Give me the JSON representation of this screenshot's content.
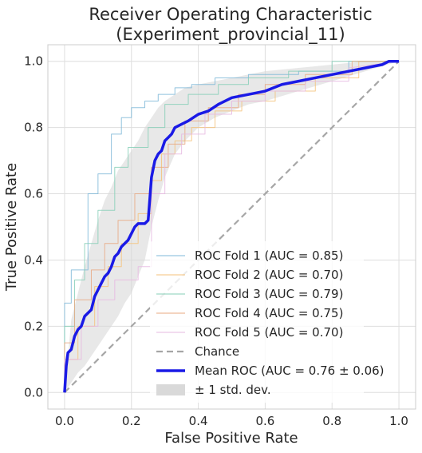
{
  "chart_data": {
    "type": "line",
    "title": "Receiver Operating Characteristic",
    "subtitle": "(Experiment_provincial_11)",
    "xlabel": "False Positive Rate",
    "ylabel": "True Positive Rate",
    "xlim": [
      -0.05,
      1.05
    ],
    "ylim": [
      -0.05,
      1.05
    ],
    "xticks": [
      "0.0",
      "0.2",
      "0.4",
      "0.6",
      "0.8",
      "1.0"
    ],
    "yticks": [
      "0.0",
      "0.2",
      "0.4",
      "0.6",
      "0.8",
      "1.0"
    ],
    "grid": true,
    "legend_position": "lower-right",
    "series": [
      {
        "name": "ROC Fold 1 (AUC = 0.85)",
        "color": "#7fb8d8",
        "width": 1,
        "dash": false,
        "x": [
          0,
          0,
          0.02,
          0.02,
          0.07,
          0.07,
          0.1,
          0.1,
          0.14,
          0.14,
          0.17,
          0.17,
          0.2,
          0.2,
          0.24,
          0.24,
          0.28,
          0.28,
          0.33,
          0.33,
          0.38,
          0.38,
          0.45,
          0.45,
          0.55,
          0.55,
          0.7,
          0.7,
          0.85,
          0.85,
          1
        ],
        "y": [
          0,
          0.27,
          0.27,
          0.37,
          0.37,
          0.6,
          0.6,
          0.66,
          0.66,
          0.78,
          0.78,
          0.83,
          0.83,
          0.86,
          0.86,
          0.88,
          0.88,
          0.9,
          0.9,
          0.92,
          0.92,
          0.93,
          0.93,
          0.95,
          0.95,
          0.96,
          0.96,
          0.97,
          0.97,
          1,
          1
        ]
      },
      {
        "name": "ROC Fold 2 (AUC = 0.70)",
        "color": "#f5c27a",
        "width": 1,
        "dash": false,
        "x": [
          0,
          0,
          0.04,
          0.04,
          0.09,
          0.09,
          0.13,
          0.13,
          0.17,
          0.17,
          0.22,
          0.22,
          0.26,
          0.26,
          0.29,
          0.29,
          0.33,
          0.33,
          0.38,
          0.38,
          0.45,
          0.45,
          0.53,
          0.53,
          0.63,
          0.63,
          0.75,
          0.75,
          0.88,
          0.88,
          1
        ],
        "y": [
          0,
          0.1,
          0.1,
          0.2,
          0.2,
          0.32,
          0.32,
          0.38,
          0.38,
          0.45,
          0.45,
          0.54,
          0.54,
          0.64,
          0.64,
          0.72,
          0.72,
          0.76,
          0.76,
          0.8,
          0.8,
          0.85,
          0.85,
          0.88,
          0.88,
          0.91,
          0.91,
          0.95,
          0.95,
          1,
          1
        ]
      },
      {
        "name": "ROC Fold 3 (AUC = 0.79)",
        "color": "#86cfb7",
        "width": 1,
        "dash": false,
        "x": [
          0,
          0,
          0.03,
          0.03,
          0.06,
          0.06,
          0.1,
          0.1,
          0.15,
          0.15,
          0.19,
          0.19,
          0.25,
          0.25,
          0.3,
          0.3,
          0.37,
          0.37,
          0.46,
          0.46,
          0.55,
          0.55,
          0.67,
          0.67,
          0.8,
          0.8,
          1
        ],
        "y": [
          0,
          0.2,
          0.2,
          0.34,
          0.34,
          0.45,
          0.45,
          0.55,
          0.55,
          0.68,
          0.68,
          0.74,
          0.74,
          0.8,
          0.8,
          0.87,
          0.87,
          0.9,
          0.9,
          0.93,
          0.93,
          0.95,
          0.95,
          0.97,
          0.97,
          1,
          1
        ]
      },
      {
        "name": "ROC Fold 4 (AUC = 0.75)",
        "color": "#e8a982",
        "width": 1,
        "dash": false,
        "x": [
          0,
          0,
          0.03,
          0.03,
          0.08,
          0.08,
          0.12,
          0.12,
          0.16,
          0.16,
          0.21,
          0.21,
          0.26,
          0.26,
          0.31,
          0.31,
          0.36,
          0.36,
          0.43,
          0.43,
          0.52,
          0.52,
          0.6,
          0.6,
          0.72,
          0.72,
          0.86,
          0.86,
          1
        ],
        "y": [
          0,
          0.15,
          0.15,
          0.28,
          0.28,
          0.37,
          0.37,
          0.45,
          0.45,
          0.52,
          0.52,
          0.6,
          0.6,
          0.68,
          0.68,
          0.75,
          0.75,
          0.82,
          0.82,
          0.86,
          0.86,
          0.9,
          0.9,
          0.93,
          0.93,
          0.96,
          0.96,
          1,
          1
        ]
      },
      {
        "name": "ROC Fold 5 (AUC = 0.70)",
        "color": "#e6b8e0",
        "width": 1,
        "dash": false,
        "x": [
          0,
          0,
          0.05,
          0.05,
          0.1,
          0.1,
          0.15,
          0.15,
          0.22,
          0.22,
          0.26,
          0.26,
          0.3,
          0.3,
          0.35,
          0.35,
          0.42,
          0.42,
          0.5,
          0.5,
          0.6,
          0.6,
          0.72,
          0.72,
          0.85,
          0.85,
          1
        ],
        "y": [
          0,
          0.1,
          0.1,
          0.2,
          0.2,
          0.28,
          0.28,
          0.34,
          0.34,
          0.38,
          0.38,
          0.6,
          0.6,
          0.72,
          0.72,
          0.78,
          0.78,
          0.84,
          0.84,
          0.88,
          0.88,
          0.91,
          0.91,
          0.94,
          0.94,
          0.98,
          1
        ]
      },
      {
        "name": "Chance",
        "color": "#a6a6a6",
        "width": 2.2,
        "dash": true,
        "x": [
          0,
          1
        ],
        "y": [
          0,
          1
        ]
      },
      {
        "name": "Mean ROC (AUC = 0.76 ± 0.06)",
        "color": "#1a1ae6",
        "width": 3.5,
        "dash": false,
        "x": [
          0,
          0.005,
          0.01,
          0.02,
          0.03,
          0.035,
          0.04,
          0.05,
          0.06,
          0.07,
          0.08,
          0.09,
          0.1,
          0.11,
          0.12,
          0.13,
          0.14,
          0.15,
          0.16,
          0.17,
          0.18,
          0.19,
          0.2,
          0.21,
          0.22,
          0.23,
          0.24,
          0.25,
          0.26,
          0.27,
          0.28,
          0.29,
          0.3,
          0.31,
          0.32,
          0.33,
          0.35,
          0.37,
          0.4,
          0.43,
          0.46,
          0.5,
          0.55,
          0.6,
          0.65,
          0.7,
          0.75,
          0.8,
          0.85,
          0.9,
          0.95,
          0.97,
          1
        ],
        "y": [
          0,
          0.08,
          0.12,
          0.13,
          0.17,
          0.18,
          0.19,
          0.2,
          0.23,
          0.24,
          0.25,
          0.29,
          0.31,
          0.33,
          0.35,
          0.36,
          0.38,
          0.41,
          0.42,
          0.44,
          0.45,
          0.46,
          0.48,
          0.5,
          0.51,
          0.51,
          0.51,
          0.52,
          0.65,
          0.7,
          0.72,
          0.73,
          0.76,
          0.77,
          0.78,
          0.8,
          0.81,
          0.82,
          0.84,
          0.85,
          0.87,
          0.89,
          0.9,
          0.91,
          0.93,
          0.94,
          0.95,
          0.96,
          0.97,
          0.98,
          0.99,
          1,
          1
        ]
      }
    ],
    "std_band": {
      "name": "± 1 std. dev.",
      "color": "#d9d9d9",
      "x": [
        0,
        0.02,
        0.04,
        0.06,
        0.08,
        0.1,
        0.12,
        0.14,
        0.16,
        0.18,
        0.2,
        0.22,
        0.24,
        0.26,
        0.28,
        0.3,
        0.33,
        0.36,
        0.4,
        0.45,
        0.5,
        0.55,
        0.6,
        0.7,
        0.8,
        0.9,
        1
      ],
      "lower": [
        0,
        0.03,
        0.06,
        0.08,
        0.11,
        0.14,
        0.17,
        0.2,
        0.23,
        0.27,
        0.3,
        0.35,
        0.4,
        0.5,
        0.58,
        0.65,
        0.72,
        0.76,
        0.8,
        0.83,
        0.85,
        0.87,
        0.88,
        0.91,
        0.94,
        0.97,
        1
      ],
      "upper": [
        0,
        0.22,
        0.3,
        0.38,
        0.45,
        0.52,
        0.58,
        0.62,
        0.67,
        0.7,
        0.73,
        0.76,
        0.8,
        0.83,
        0.86,
        0.88,
        0.9,
        0.92,
        0.93,
        0.94,
        0.95,
        0.96,
        0.97,
        0.98,
        0.99,
        1,
        1
      ]
    }
  }
}
